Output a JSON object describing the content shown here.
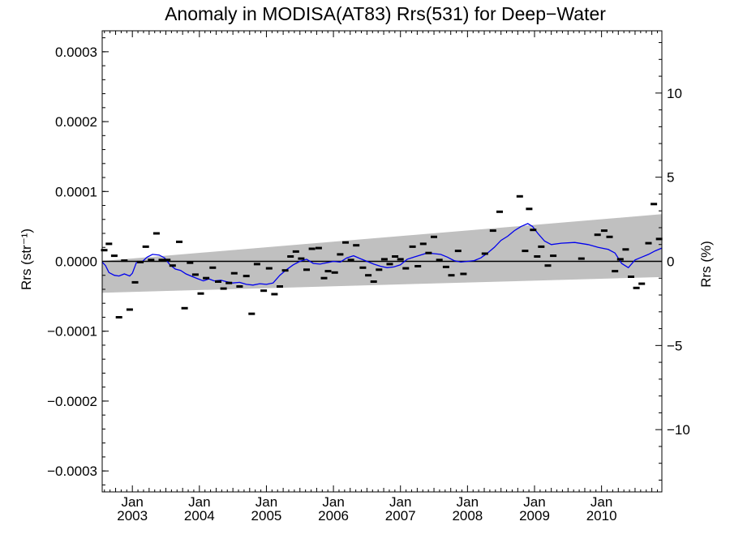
{
  "chart_data": {
    "type": "scatter",
    "title": "Anomaly in MODISA(AT83) Rrs(531) for Deep−Water",
    "ylabel_left": "Rrs (str⁻¹)",
    "ylabel_right": "Rrs (%)",
    "xlabel": "",
    "xlim": [
      2002.55,
      2010.9
    ],
    "ylim": [
      -0.00033,
      0.00033
    ],
    "ylim_right": [
      -13.7,
      13.7
    ],
    "grid": false,
    "legend": "none",
    "colors": {
      "band": "#c0c0c0",
      "trend_line": "#0000ee",
      "points": "#000000",
      "zero_line": "#000000"
    },
    "x_ticks": [
      {
        "x": 2003.0,
        "month": "Jan",
        "year": "2003"
      },
      {
        "x": 2004.0,
        "month": "Jan",
        "year": "2004"
      },
      {
        "x": 2005.0,
        "month": "Jan",
        "year": "2005"
      },
      {
        "x": 2006.0,
        "month": "Jan",
        "year": "2006"
      },
      {
        "x": 2007.0,
        "month": "Jan",
        "year": "2007"
      },
      {
        "x": 2008.0,
        "month": "Jan",
        "year": "2008"
      },
      {
        "x": 2009.0,
        "month": "Jan",
        "year": "2009"
      },
      {
        "x": 2010.0,
        "month": "Jan",
        "year": "2010"
      }
    ],
    "y_ticks_left": [
      {
        "value": 0.0003,
        "label": "0.0003"
      },
      {
        "value": 0.0002,
        "label": "0.0002"
      },
      {
        "value": 0.0001,
        "label": "0.0001"
      },
      {
        "value": 0.0,
        "label": "0.0000"
      },
      {
        "value": -0.0001,
        "label": "−0.0001"
      },
      {
        "value": -0.0002,
        "label": "−0.0002"
      },
      {
        "value": -0.0003,
        "label": "−0.0003"
      }
    ],
    "y_ticks_right": [
      {
        "value": 10,
        "label": "10"
      },
      {
        "value": 5,
        "label": "5"
      },
      {
        "value": 0,
        "label": "0"
      },
      {
        "value": -5,
        "label": "−5"
      },
      {
        "value": -10,
        "label": "−10"
      }
    ],
    "band": {
      "x": [
        2002.55,
        2010.9
      ],
      "upper": [
        5e-07,
        6.75e-05
      ],
      "lower": [
        -4.5e-05,
        -2.25e-05
      ]
    },
    "points": {
      "x": [
        2002.58,
        2002.65,
        2002.73,
        2002.8,
        2002.88,
        2002.96,
        2003.04,
        2003.12,
        2003.2,
        2003.28,
        2003.36,
        2003.44,
        2003.52,
        2003.6,
        2003.7,
        2003.78,
        2003.86,
        2003.94,
        2004.02,
        2004.1,
        2004.2,
        2004.28,
        2004.36,
        2004.44,
        2004.52,
        2004.6,
        2004.7,
        2004.78,
        2004.86,
        2004.96,
        2005.04,
        2005.12,
        2005.2,
        2005.28,
        2005.36,
        2005.44,
        2005.52,
        2005.6,
        2005.68,
        2005.78,
        2005.86,
        2005.92,
        2006.02,
        2006.1,
        2006.18,
        2006.26,
        2006.34,
        2006.44,
        2006.52,
        2006.6,
        2006.68,
        2006.76,
        2006.84,
        2006.92,
        2007.0,
        2007.08,
        2007.18,
        2007.26,
        2007.34,
        2007.42,
        2007.5,
        2007.58,
        2007.68,
        2007.76,
        2007.86,
        2007.94,
        2008.26,
        2008.38,
        2008.48,
        2008.78,
        2008.86,
        2008.92,
        2008.98,
        2009.04,
        2009.1,
        2009.2,
        2009.28,
        2009.7,
        2009.94,
        2010.04,
        2010.12,
        2010.2,
        2010.28,
        2010.36,
        2010.44,
        2010.52,
        2010.6,
        2010.7,
        2010.78,
        2010.86
      ],
      "y": [
        1.6e-05,
        2.5e-05,
        8e-06,
        -8e-05,
        1e-06,
        -6.9e-05,
        -3e-05,
        -1e-06,
        2.1e-05,
        2e-06,
        4e-05,
        2e-06,
        2e-06,
        -6e-06,
        2.8e-05,
        -6.7e-05,
        -2e-06,
        -1.9e-05,
        -4.6e-05,
        -2.4e-05,
        -9e-06,
        -2.9e-05,
        -3.9e-05,
        -3.1e-05,
        -1.7e-05,
        -3.6e-05,
        -2.1e-05,
        -7.5e-05,
        -4e-06,
        -4.2e-05,
        -1e-05,
        -4.7e-05,
        -3.6e-05,
        -1.3e-05,
        7e-06,
        1.4e-05,
        4e-06,
        -1.2e-05,
        1.8e-05,
        1.9e-05,
        -2.4e-05,
        -1.4e-05,
        -1.6e-05,
        1e-05,
        2.7e-05,
        2e-06,
        2.3e-05,
        -9e-06,
        -2e-05,
        -2.9e-05,
        -1.2e-05,
        3e-06,
        -4e-06,
        7e-06,
        3e-06,
        -1e-05,
        2.1e-05,
        -7e-06,
        2.5e-05,
        1.2e-05,
        3.5e-05,
        2e-06,
        -8e-06,
        -2e-05,
        1.5e-05,
        -1.8e-05,
        1.1e-05,
        4.4e-05,
        7.1e-05,
        9.3e-05,
        1.5e-05,
        7.5e-05,
        4.5e-05,
        7e-06,
        2.1e-05,
        -6e-06,
        8e-06,
        4e-06,
        3.8e-05,
        4.4e-05,
        3.5e-05,
        -1.4e-05,
        3e-06,
        1.7e-05,
        -2.2e-05,
        -3.8e-05,
        -3.2e-05,
        2.6e-05,
        8.2e-05,
        3.2e-05
      ]
    },
    "trend_line": {
      "x": [
        2002.55,
        2002.6,
        2002.65,
        2002.73,
        2002.8,
        2002.88,
        2002.96,
        2003.0,
        2003.06,
        2003.14,
        2003.22,
        2003.3,
        2003.4,
        2003.48,
        2003.56,
        2003.64,
        2003.72,
        2003.8,
        2003.9,
        2003.98,
        2004.06,
        2004.14,
        2004.22,
        2004.32,
        2004.4,
        2004.5,
        2004.6,
        2004.7,
        2004.8,
        2004.9,
        2005.0,
        2005.1,
        2005.2,
        2005.3,
        2005.4,
        2005.5,
        2005.6,
        2005.7,
        2005.8,
        2005.9,
        2006.0,
        2006.1,
        2006.2,
        2006.3,
        2006.4,
        2006.5,
        2006.6,
        2006.7,
        2006.8,
        2006.9,
        2007.0,
        2007.1,
        2007.2,
        2007.3,
        2007.4,
        2007.5,
        2007.6,
        2007.7,
        2007.8,
        2007.9,
        2008.0,
        2008.1,
        2008.2,
        2008.3,
        2008.4,
        2008.5,
        2008.6,
        2008.7,
        2008.8,
        2008.9,
        2008.97,
        2009.05,
        2009.15,
        2009.25,
        2009.4,
        2009.6,
        2009.8,
        2009.95,
        2010.1,
        2010.2,
        2010.3,
        2010.4,
        2010.5,
        2010.6,
        2010.7,
        2010.8,
        2010.9
      ],
      "y": [
        -1e-06,
        -6e-06,
        -1.6e-05,
        -2e-05,
        -2.1e-05,
        -1.8e-05,
        -2.1e-05,
        -1.7e-05,
        -2e-06,
        -1e-06,
        6e-06,
        1e-05,
        9e-06,
        5e-06,
        -5e-06,
        -1.1e-05,
        -1.3e-05,
        -1.8e-05,
        -2.2e-05,
        -2.5e-05,
        -2.8e-05,
        -2.5e-05,
        -2.8e-05,
        -2.7e-05,
        -2.9e-05,
        -3.1e-05,
        -3e-05,
        -3.3e-05,
        -3.4e-05,
        -3.2e-05,
        -3.3e-05,
        -3.1e-05,
        -2e-05,
        -1.2e-05,
        -5e-06,
        0.0,
        3e-06,
        -3e-06,
        -4e-06,
        -2e-06,
        0.0,
        -1e-06,
        5e-06,
        8e-06,
        4e-06,
        0.0,
        -4e-06,
        -7e-06,
        -9e-06,
        -8e-06,
        -5e-06,
        3e-06,
        6e-06,
        9e-06,
        1.2e-05,
        1.1e-05,
        1e-05,
        6e-06,
        1e-06,
        -1e-06,
        0.0,
        1e-06,
        5e-06,
        1.2e-05,
        2e-05,
        3e-05,
        3.6e-05,
        4.4e-05,
        5e-05,
        5.4e-05,
        5e-05,
        4e-05,
        2.9e-05,
        2.4e-05,
        2.6e-05,
        2.7e-05,
        2.4e-05,
        2e-05,
        1.7e-05,
        1.2e-05,
        -3e-06,
        -9e-06,
        2e-06,
        6e-06,
        1e-05,
        1.5e-05,
        1.9e-05
      ]
    }
  }
}
